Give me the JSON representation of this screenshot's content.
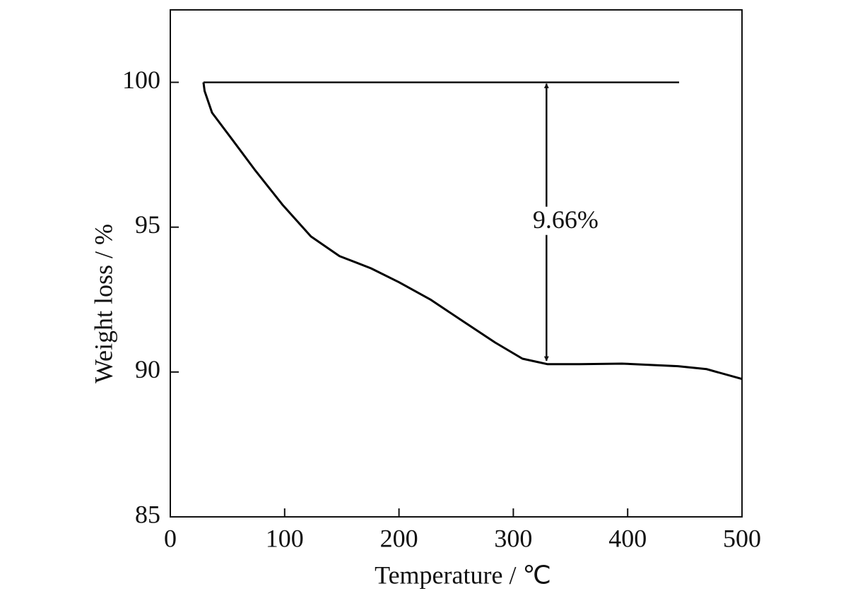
{
  "chart_data": {
    "type": "line",
    "xlabel": "Temperature / ℃",
    "ylabel": "Weight loss / %",
    "x": [
      29,
      30,
      36.5,
      55,
      73.5,
      98,
      123,
      148,
      175.5,
      200,
      228,
      253,
      284,
      308,
      330,
      358,
      395,
      444,
      469,
      500
    ],
    "series": [
      {
        "color": "#000000",
        "values": [
          100,
          99.7,
          98.95,
          97.98,
          97.0,
          95.78,
          94.68,
          94.0,
          93.58,
          93.1,
          92.49,
          91.83,
          91.02,
          90.46,
          90.27,
          90.27,
          90.29,
          90.2,
          90.1,
          89.76
        ]
      }
    ],
    "reference_line": {
      "y": 100,
      "x": [
        29,
        445
      ]
    },
    "arrow": {
      "x": 329,
      "y": [
        100,
        90.34
      ],
      "label": "9.66%"
    },
    "xlim": [
      0,
      500
    ],
    "xticks": [
      0,
      100,
      200,
      300,
      400,
      500
    ],
    "ylim": [
      85,
      102.5
    ],
    "yticks": [
      85,
      90,
      95,
      100
    ],
    "grid": false
  }
}
